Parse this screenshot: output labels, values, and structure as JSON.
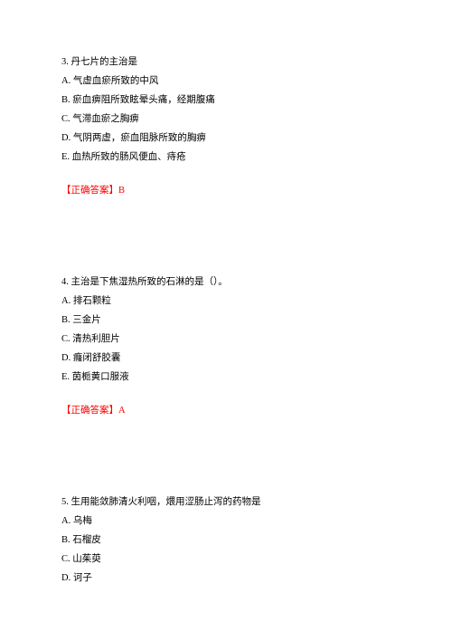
{
  "q3": {
    "stem": "3. 丹七片的主治是",
    "options": {
      "a": "A. 气虚血瘀所致的中风",
      "b": "B. 瘀血痹阻所致眩晕头痛，经期腹痛",
      "c": "C. 气滞血瘀之胸痹",
      "d": "D. 气阴两虚，瘀血阻脉所致的胸痹",
      "e": "E. 血热所致的肠风便血、痔疮"
    },
    "answer": "【正确答案】B"
  },
  "q4": {
    "stem": "4. 主治是下焦湿热所致的石淋的是（）。",
    "options": {
      "a": "A. 排石颗粒",
      "b": "B. 三金片",
      "c": "C. 清热利胆片",
      "d": "D. 癃闭舒胶囊",
      "e": "E. 茵栀黄口服液"
    },
    "answer": "【正确答案】A"
  },
  "q5": {
    "stem": "5. 生用能敛肺清火利咽，煨用涩肠止泻的药物是",
    "options": {
      "a": "A. 乌梅",
      "b": "B. 石榴皮",
      "c": "C. 山茱萸",
      "d": "D. 诃子"
    }
  }
}
